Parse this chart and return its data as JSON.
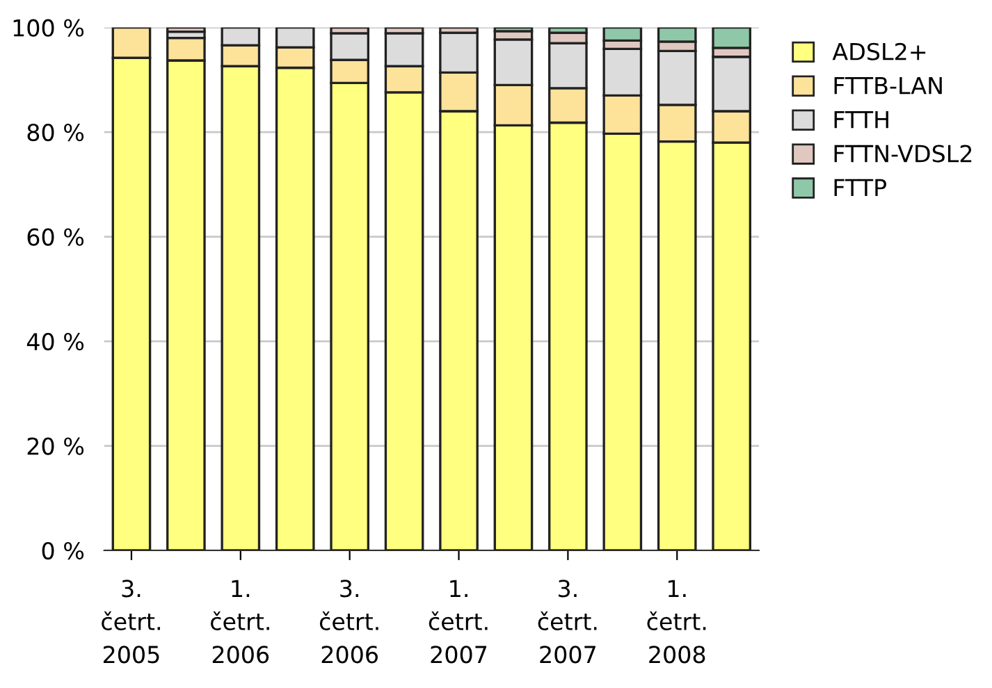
{
  "chart_data": {
    "type": "bar",
    "stacked": true,
    "categories": [
      "3.\nčetrt.\n2005",
      null,
      "1.\nčetrt.\n2006",
      null,
      "3.\nčetrt.\n2006",
      null,
      "1.\nčetrt.\n2007",
      null,
      "3.\nčetrt.\n2007",
      null,
      "1.\nčetrt.\n2008",
      null
    ],
    "series": [
      {
        "name": "ADSL2+",
        "color": "#ffff80",
        "values": [
          94.2,
          93.7,
          92.6,
          92.3,
          89.4,
          87.6,
          84.0,
          81.3,
          81.8,
          79.7,
          78.2,
          78.0
        ]
      },
      {
        "name": "FTTB-LAN",
        "color": "#fde29a",
        "values": [
          5.8,
          4.3,
          4.0,
          3.9,
          4.4,
          5.0,
          7.4,
          7.7,
          6.6,
          7.3,
          7.0,
          6.0
        ]
      },
      {
        "name": "FTTH",
        "color": "#dcdcdc",
        "values": [
          null,
          1.2,
          3.4,
          3.8,
          5.1,
          6.3,
          7.6,
          8.7,
          8.6,
          8.9,
          10.3,
          10.4
        ]
      },
      {
        "name": "FTTN-VDSL2",
        "color": "#e0c8c0",
        "values": [
          null,
          0.8,
          null,
          null,
          1.1,
          1.1,
          1.0,
          1.6,
          2.0,
          1.6,
          1.8,
          1.7
        ]
      },
      {
        "name": "FTTP",
        "color": "#8fc8a8",
        "values": [
          null,
          null,
          null,
          null,
          null,
          null,
          null,
          0.7,
          1.0,
          2.5,
          2.7,
          3.9
        ]
      }
    ],
    "ylim": [
      0,
      100
    ],
    "yticks": [
      {
        "value": 0,
        "label": "0 %"
      },
      {
        "value": 20,
        "label": "20 %"
      },
      {
        "value": 40,
        "label": "40 %"
      },
      {
        "value": 60,
        "label": "60 %"
      },
      {
        "value": 80,
        "label": "80 %"
      },
      {
        "value": 100,
        "label": "100 %"
      }
    ],
    "grid": "y",
    "legend": "right"
  }
}
